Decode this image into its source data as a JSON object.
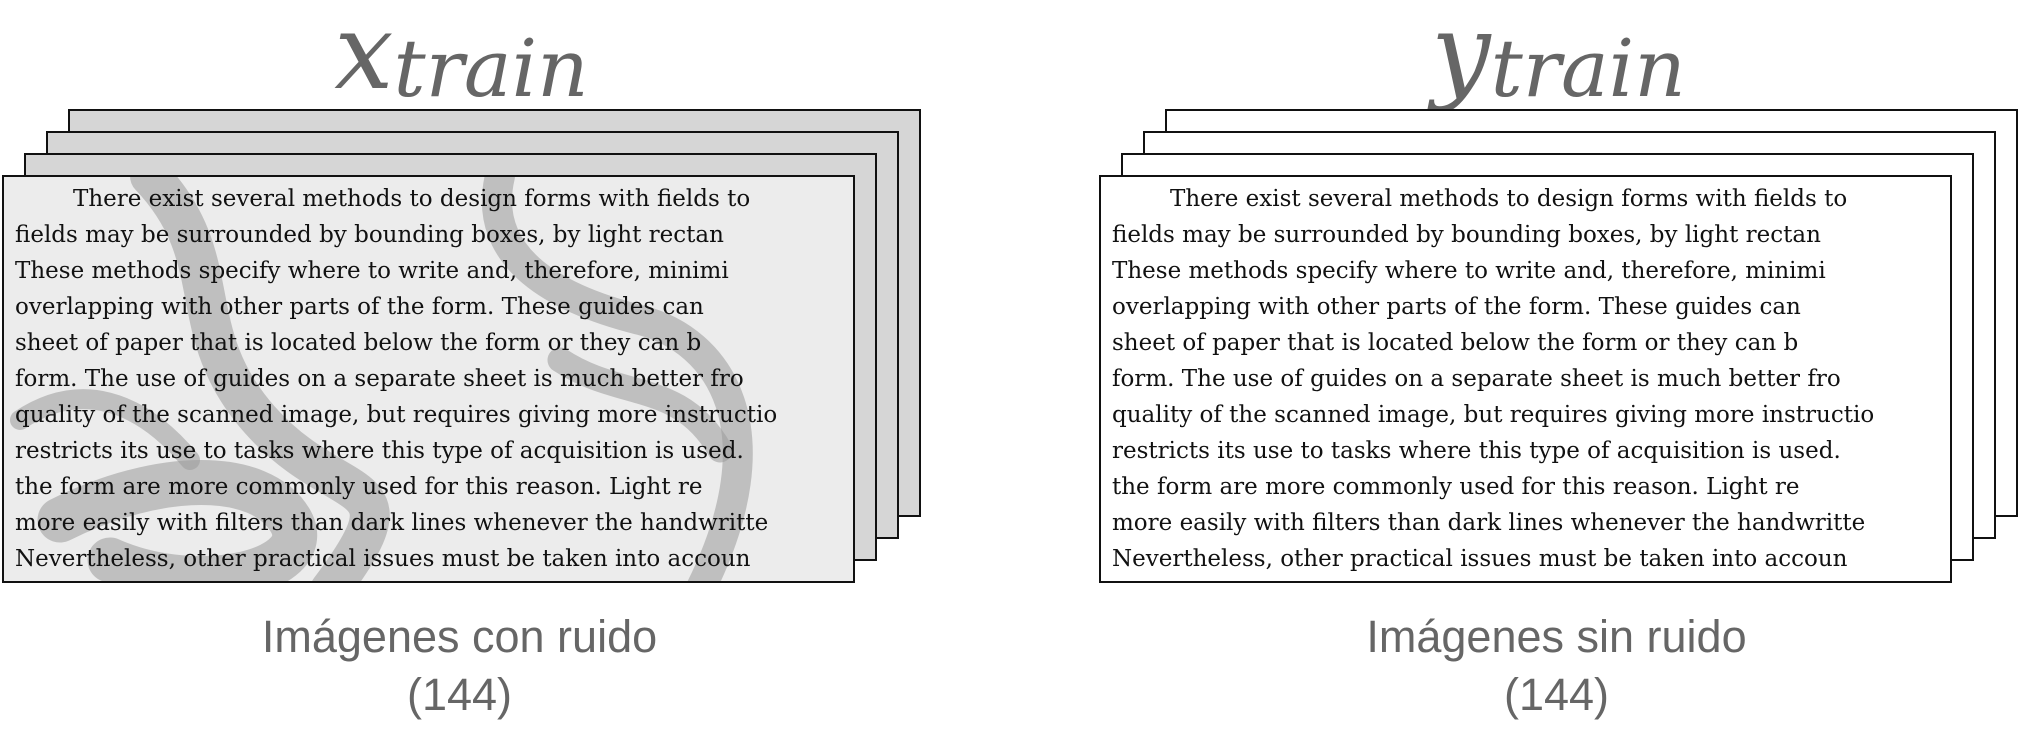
{
  "panels": [
    {
      "title_var": "x",
      "title_sub": "train",
      "lines": [
        "There exist several methods to design forms with fields to",
        "fields may be surrounded by bounding boxes, by light rectan",
        "These methods specify where to write and, therefore, minimi",
        "overlapping with other parts of the form.  These guides can",
        "sheet of paper that is located below the form or they can b",
        "form. The use of guides on a separate sheet is much better fro",
        "quality of the scanned image, but requires giving more instructio",
        "restricts its use to tasks where this type of acquisition is used.",
        "the form are more commonly used for this reason.  Light re",
        "more easily with filters than dark lines whenever the handwritte",
        "Nevertheless, other practical issues must be taken into accoun"
      ],
      "caption": "Imágenes con ruido",
      "count": "(144)"
    },
    {
      "title_var": "y",
      "title_sub": "train",
      "lines": [
        "There exist several methods to design forms with fields to",
        "fields may be surrounded by bounding boxes, by light rectan",
        "These methods specify where to write and, therefore, minimi",
        "overlapping with other parts of the form.  These guides can",
        "sheet of paper that is located below the form or they can b",
        "form. The use of guides on a separate sheet is much better fro",
        "quality of the scanned image, but requires giving more instructio",
        "restricts its use to tasks where this type of acquisition is used.",
        "the form are more commonly used for this reason.  Light re",
        "more easily with filters than dark lines whenever the handwritte",
        "Nevertheless, other practical issues must be taken into accoun"
      ],
      "caption": "Imágenes sin ruido",
      "count": "(144)"
    }
  ]
}
